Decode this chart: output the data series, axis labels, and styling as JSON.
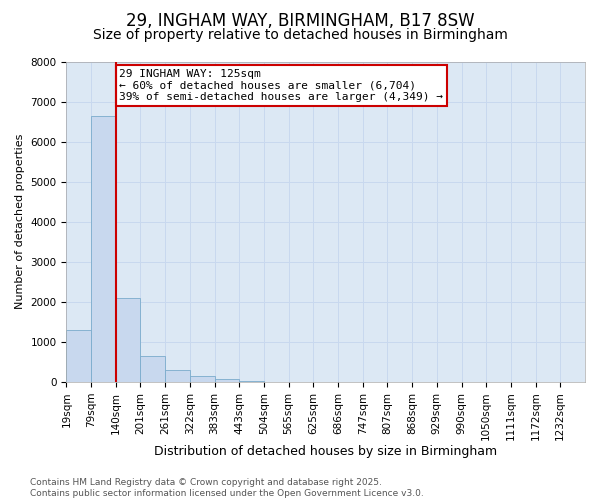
{
  "title1": "29, INGHAM WAY, BIRMINGHAM, B17 8SW",
  "title2": "Size of property relative to detached houses in Birmingham",
  "xlabel": "Distribution of detached houses by size in Birmingham",
  "ylabel": "Number of detached properties",
  "bin_labels": [
    "19sqm",
    "79sqm",
    "140sqm",
    "201sqm",
    "261sqm",
    "322sqm",
    "383sqm",
    "443sqm",
    "504sqm",
    "565sqm",
    "625sqm",
    "686sqm",
    "747sqm",
    "807sqm",
    "868sqm",
    "929sqm",
    "990sqm",
    "1050sqm",
    "1111sqm",
    "1172sqm",
    "1232sqm"
  ],
  "bar_heights": [
    1300,
    6650,
    2100,
    650,
    300,
    150,
    60,
    10,
    0,
    0,
    0,
    0,
    0,
    0,
    0,
    0,
    0,
    0,
    0,
    0
  ],
  "bar_color": "#c8d8ee",
  "bar_edge_color": "#7aabcc",
  "red_line_x": 2,
  "red_line_color": "#cc0000",
  "annotation_text": "29 INGHAM WAY: 125sqm\n← 60% of detached houses are smaller (6,704)\n39% of semi-detached houses are larger (4,349) →",
  "annotation_box_color": "#ffffff",
  "annotation_box_edge": "#cc0000",
  "ylim": [
    0,
    8000
  ],
  "yticks": [
    0,
    1000,
    2000,
    3000,
    4000,
    5000,
    6000,
    7000,
    8000
  ],
  "grid_color": "#c8d8ee",
  "bg_color": "#dce8f4",
  "footer_text": "Contains HM Land Registry data © Crown copyright and database right 2025.\nContains public sector information licensed under the Open Government Licence v3.0.",
  "title1_fontsize": 12,
  "title2_fontsize": 10,
  "xlabel_fontsize": 9,
  "ylabel_fontsize": 8,
  "tick_fontsize": 7.5,
  "annotation_fontsize": 8,
  "footer_fontsize": 6.5
}
